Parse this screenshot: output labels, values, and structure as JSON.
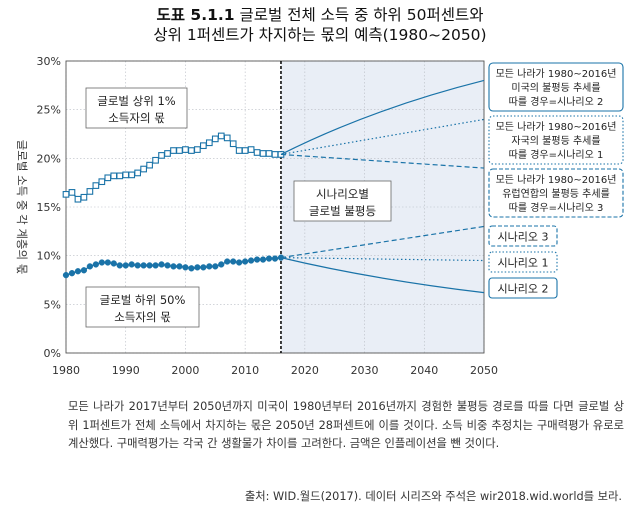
{
  "title": {
    "label": "도표 5.1.1",
    "line1": "글로벌 전체 소득 중 하위 50퍼센트와",
    "line2": "상위 1퍼센트가 차지하는 몫의 예측(1980~2050)"
  },
  "colors": {
    "series": "#1a73a8",
    "forecast_bg": "#e9eef6",
    "divider": "#000000"
  },
  "chart_data": {
    "type": "line",
    "ylabel": "글로벌 소득 중 각 계층의 몫",
    "xlim": [
      1980,
      2050
    ],
    "ylim": [
      0,
      30
    ],
    "xticks": [
      "1980",
      "1990",
      "2000",
      "2010",
      "2020",
      "2030",
      "2040",
      "2050"
    ],
    "yticks": [
      "0%",
      "5%",
      "10%",
      "15%",
      "20%",
      "25%",
      "30%"
    ],
    "grid": true,
    "forecast_start": 2016,
    "annotations": {
      "top1": [
        "글로벌 상위 1%",
        "소득자의 몫"
      ],
      "bottom50": [
        "글로벌 하위 50%",
        "소득자의 몫"
      ],
      "scenario_box": [
        "시나리오별",
        "글로벌 불평등"
      ]
    },
    "historical": {
      "top1": {
        "name": "글로벌 상위 1%",
        "x": [
          1980,
          1981,
          1982,
          1983,
          1984,
          1985,
          1986,
          1987,
          1988,
          1989,
          1990,
          1991,
          1992,
          1993,
          1994,
          1995,
          1996,
          1997,
          1998,
          1999,
          2000,
          2001,
          2002,
          2003,
          2004,
          2005,
          2006,
          2007,
          2008,
          2009,
          2010,
          2011,
          2012,
          2013,
          2014,
          2015,
          2016
        ],
        "values": [
          16.3,
          16.5,
          15.8,
          16.0,
          16.6,
          17.2,
          17.6,
          18.0,
          18.2,
          18.2,
          18.3,
          18.3,
          18.5,
          18.9,
          19.3,
          19.8,
          20.3,
          20.5,
          20.8,
          20.8,
          20.9,
          20.8,
          20.9,
          21.3,
          21.6,
          22.0,
          22.3,
          22.1,
          21.5,
          20.8,
          20.8,
          20.9,
          20.6,
          20.5,
          20.5,
          20.4,
          20.4
        ]
      },
      "bottom50": {
        "name": "글로벌 하위 50%",
        "x": [
          1980,
          1981,
          1982,
          1983,
          1984,
          1985,
          1986,
          1987,
          1988,
          1989,
          1990,
          1991,
          1992,
          1993,
          1994,
          1995,
          1996,
          1997,
          1998,
          1999,
          2000,
          2001,
          2002,
          2003,
          2004,
          2005,
          2006,
          2007,
          2008,
          2009,
          2010,
          2011,
          2012,
          2013,
          2014,
          2015,
          2016
        ],
        "values": [
          8.0,
          8.2,
          8.4,
          8.5,
          8.9,
          9.1,
          9.3,
          9.3,
          9.2,
          9.0,
          9.0,
          9.1,
          9.0,
          9.0,
          9.0,
          9.0,
          9.1,
          9.0,
          8.9,
          8.9,
          8.8,
          8.7,
          8.8,
          8.8,
          8.9,
          8.9,
          9.1,
          9.4,
          9.4,
          9.3,
          9.4,
          9.5,
          9.6,
          9.6,
          9.7,
          9.7,
          9.8
        ]
      }
    },
    "scenarios_top1": [
      {
        "label": [
          "모든 나라가 1980~2016년",
          "미국의 불평등 추세를",
          "따를 경우=시나리오 2"
        ],
        "style": "solid",
        "x": [
          2016,
          2050
        ],
        "values": [
          20.4,
          28.0
        ]
      },
      {
        "label": [
          "모든 나라가 1980~2016년",
          "자국의 불평등 추세를",
          "따를 경우=시나리오 1"
        ],
        "style": "dotted",
        "x": [
          2016,
          2050
        ],
        "values": [
          20.4,
          24.0
        ]
      },
      {
        "label": [
          "모든 나라가 1980~2016년",
          "유럽연합의 불평등 추세를",
          "따를 경우=시나리오 3"
        ],
        "style": "dashed",
        "x": [
          2016,
          2050
        ],
        "values": [
          20.4,
          19.0
        ]
      }
    ],
    "scenarios_bottom50": [
      {
        "label": "시나리오 3",
        "style": "dashed",
        "x": [
          2016,
          2050
        ],
        "values": [
          9.8,
          13.0
        ]
      },
      {
        "label": "시나리오 1",
        "style": "dotted",
        "x": [
          2016,
          2050
        ],
        "values": [
          9.8,
          9.5
        ]
      },
      {
        "label": "시나리오 2",
        "style": "solid",
        "x": [
          2016,
          2050
        ],
        "values": [
          9.8,
          6.2
        ]
      }
    ]
  },
  "note": "모든 나라가 2017년부터 2050년까지 미국이 1980년부터 2016년까지 경험한 불평등 경로를 따를 다면 글로벌 상위 1퍼센트가 전체 소득에서 차지하는 몫은 2050년 28퍼센트에 이를 것이다. 소득 비중 추정치는 구매력평가 유로로 계산했다. 구매력평가는 각국 간 생활물가 차이를 고려한다. 금액은 인플레이션을 뺀 것이다.",
  "source": "출처: WID.월드(2017). 데이터 시리즈와 주석은 wir2018.wid.world를 보라."
}
